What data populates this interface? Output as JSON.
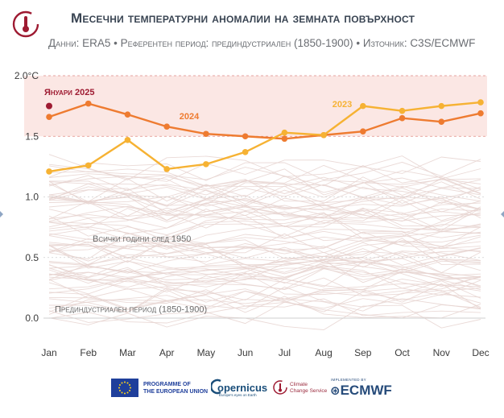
{
  "header": {
    "title": "Месечни температурни аномалии на земната повърхност",
    "subtitle": "Данни: ERA5 • Референтен период: прединдустриален (1850-1900) • Източник: C3S/ECMWF"
  },
  "footer": {
    "eu_line1": "PROGRAMME OF",
    "eu_line2": "THE EUROPEAN UNION",
    "copernicus": "opernicus",
    "copernicus_sub": "Europe's eyes on Earth",
    "c3s_line1": "Climate",
    "c3s_line2": "Change Service",
    "ecmwf_implemented": "IMPLEMENTED BY",
    "ecmwf": "ECMWF"
  },
  "colors": {
    "series_2024": "#ee7b30",
    "series_2023": "#f6b233",
    "jan_2025": "#9e1b32",
    "background_lines": "#e6d3d0",
    "band_fill": "#fbe7e4",
    "threshold_line": "#e08a85"
  },
  "chart_data": {
    "type": "line",
    "categories": [
      "Jan",
      "Feb",
      "Mar",
      "Apr",
      "May",
      "Jun",
      "Jul",
      "Aug",
      "Sep",
      "Oct",
      "Nov",
      "Dec"
    ],
    "ylim": [
      0,
      2.0
    ],
    "yticks": [
      "0.0",
      "0.5",
      "1.0",
      "1.5",
      "2.0°C"
    ],
    "grid": "dashed horizontal",
    "series": [
      {
        "name": "2024",
        "values": [
          1.66,
          1.77,
          1.68,
          1.58,
          1.52,
          1.5,
          1.48,
          1.51,
          1.54,
          1.65,
          1.62,
          1.69
        ]
      },
      {
        "name": "2023",
        "values": [
          1.21,
          1.26,
          1.47,
          1.23,
          1.27,
          1.37,
          1.53,
          1.51,
          1.75,
          1.71,
          1.75,
          1.78
        ]
      }
    ],
    "highlight_point": {
      "name": "Януари 2025",
      "category": "Jan",
      "value": 1.75
    },
    "annotations": {
      "all_years": "Всички години след 1950",
      "preindustrial": "Прединдустриален период (1850-1900)"
    }
  }
}
